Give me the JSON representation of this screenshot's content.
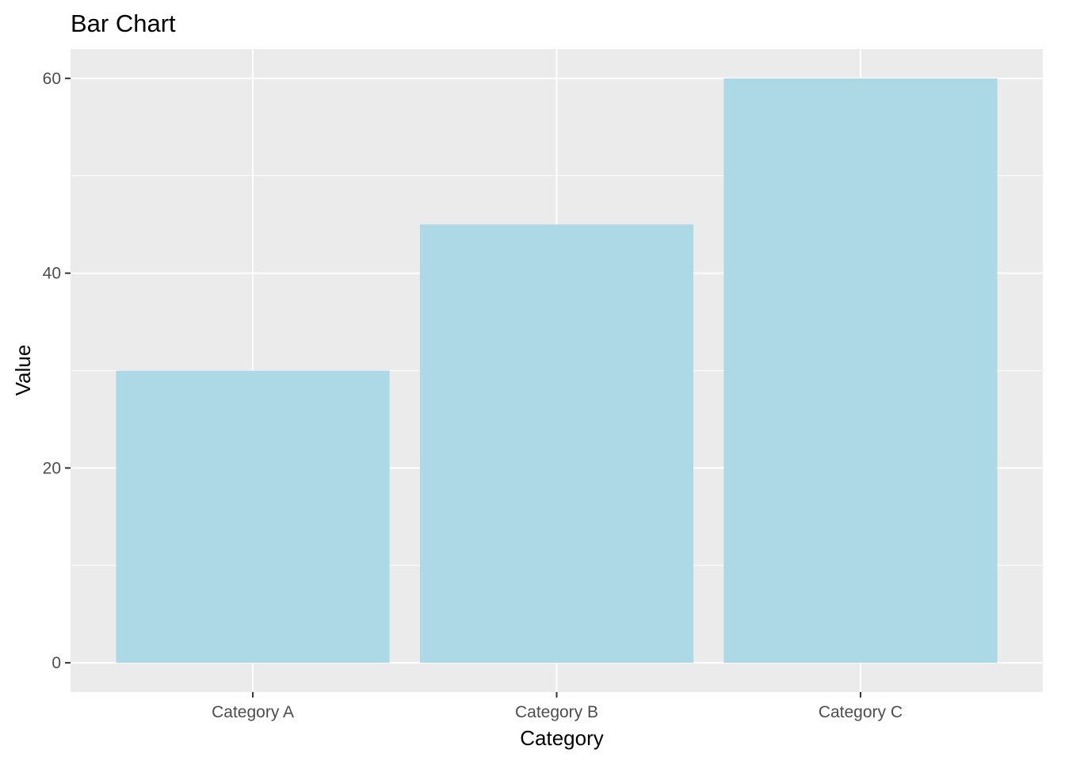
{
  "chart_data": {
    "type": "bar",
    "title": "Bar Chart",
    "xlabel": "Category",
    "ylabel": "Value",
    "categories": [
      "Category A",
      "Category B",
      "Category C"
    ],
    "values": [
      30,
      45,
      60
    ],
    "ylim": [
      -3,
      63
    ],
    "yticks": [
      0,
      20,
      40,
      60
    ],
    "yticks_minor": [
      10,
      30,
      50
    ],
    "grid": true,
    "legend": "none",
    "colors": {
      "bar": "#add8e6",
      "panel": "#ebebeb",
      "grid": "#ffffff",
      "tick": "#333333",
      "tick_label": "#4d4d4d"
    }
  }
}
